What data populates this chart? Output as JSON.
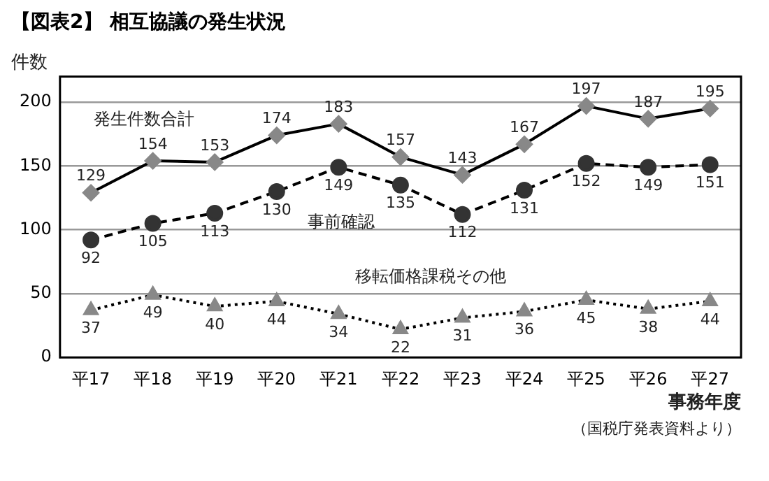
{
  "chart_data": {
    "type": "line",
    "title": "【図表2】 相互協議の発生状況",
    "ylabel": "件数",
    "xlabel": "事務年度",
    "categories": [
      "平17",
      "平18",
      "平19",
      "平20",
      "平21",
      "平22",
      "平23",
      "平24",
      "平25",
      "平26",
      "平27"
    ],
    "series": [
      {
        "name": "発生件数合計",
        "color": "#888888",
        "marker": "diamond",
        "line_style": "solid",
        "values": [
          129,
          154,
          153,
          174,
          183,
          157,
          143,
          167,
          197,
          187,
          195
        ]
      },
      {
        "name": "事前確認",
        "color": "#333333",
        "marker": "circle",
        "line_style": "dashed",
        "values": [
          92,
          105,
          113,
          130,
          149,
          135,
          112,
          131,
          152,
          149,
          151
        ]
      },
      {
        "name": "移転価格課税その他",
        "color": "#888888",
        "marker": "triangle",
        "line_style": "dotted",
        "values": [
          37,
          49,
          40,
          44,
          34,
          22,
          31,
          36,
          45,
          38,
          44
        ]
      }
    ],
    "ylim": [
      0,
      220
    ],
    "yticks": [
      0,
      50,
      100,
      150,
      200
    ],
    "grid": "y",
    "legend": false,
    "data_labels": true,
    "annotations": [
      "（国税庁発表資料より）"
    ]
  }
}
